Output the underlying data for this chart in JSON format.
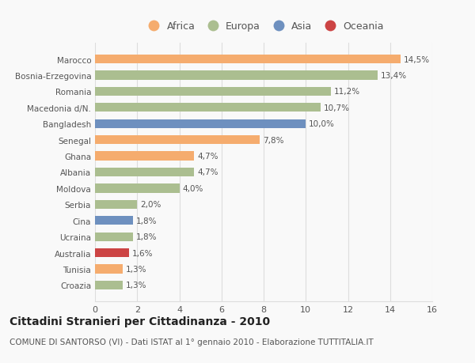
{
  "categories": [
    "Croazia",
    "Tunisia",
    "Australia",
    "Ucraina",
    "Cina",
    "Serbia",
    "Moldova",
    "Albania",
    "Ghana",
    "Senegal",
    "Bangladesh",
    "Macedonia d/N.",
    "Romania",
    "Bosnia-Erzegovina",
    "Marocco"
  ],
  "values": [
    1.3,
    1.3,
    1.6,
    1.8,
    1.8,
    2.0,
    4.0,
    4.7,
    4.7,
    7.8,
    10.0,
    10.7,
    11.2,
    13.4,
    14.5
  ],
  "labels": [
    "1,3%",
    "1,3%",
    "1,6%",
    "1,8%",
    "1,8%",
    "2,0%",
    "4,0%",
    "4,7%",
    "4,7%",
    "7,8%",
    "10,0%",
    "10,7%",
    "11,2%",
    "13,4%",
    "14,5%"
  ],
  "continents": [
    "Europa",
    "Africa",
    "Oceania",
    "Europa",
    "Asia",
    "Europa",
    "Europa",
    "Europa",
    "Africa",
    "Africa",
    "Asia",
    "Europa",
    "Europa",
    "Europa",
    "Africa"
  ],
  "colors": {
    "Africa": "#F5AC6E",
    "Europa": "#ABBE90",
    "Asia": "#6E90BF",
    "Oceania": "#CC4444"
  },
  "legend_order": [
    "Africa",
    "Europa",
    "Asia",
    "Oceania"
  ],
  "xlim": [
    0,
    16
  ],
  "xticks": [
    0,
    2,
    4,
    6,
    8,
    10,
    12,
    14,
    16
  ],
  "title": "Cittadini Stranieri per Cittadinanza - 2010",
  "subtitle": "COMUNE DI SANTORSO (VI) - Dati ISTAT al 1° gennaio 2010 - Elaborazione TUTTITALIA.IT",
  "background_color": "#f9f9f9",
  "bar_height": 0.55,
  "grid_color": "#dddddd",
  "label_fontsize": 7.5,
  "title_fontsize": 10,
  "subtitle_fontsize": 7.5,
  "ytick_fontsize": 7.5,
  "xtick_fontsize": 8,
  "legend_fontsize": 9
}
